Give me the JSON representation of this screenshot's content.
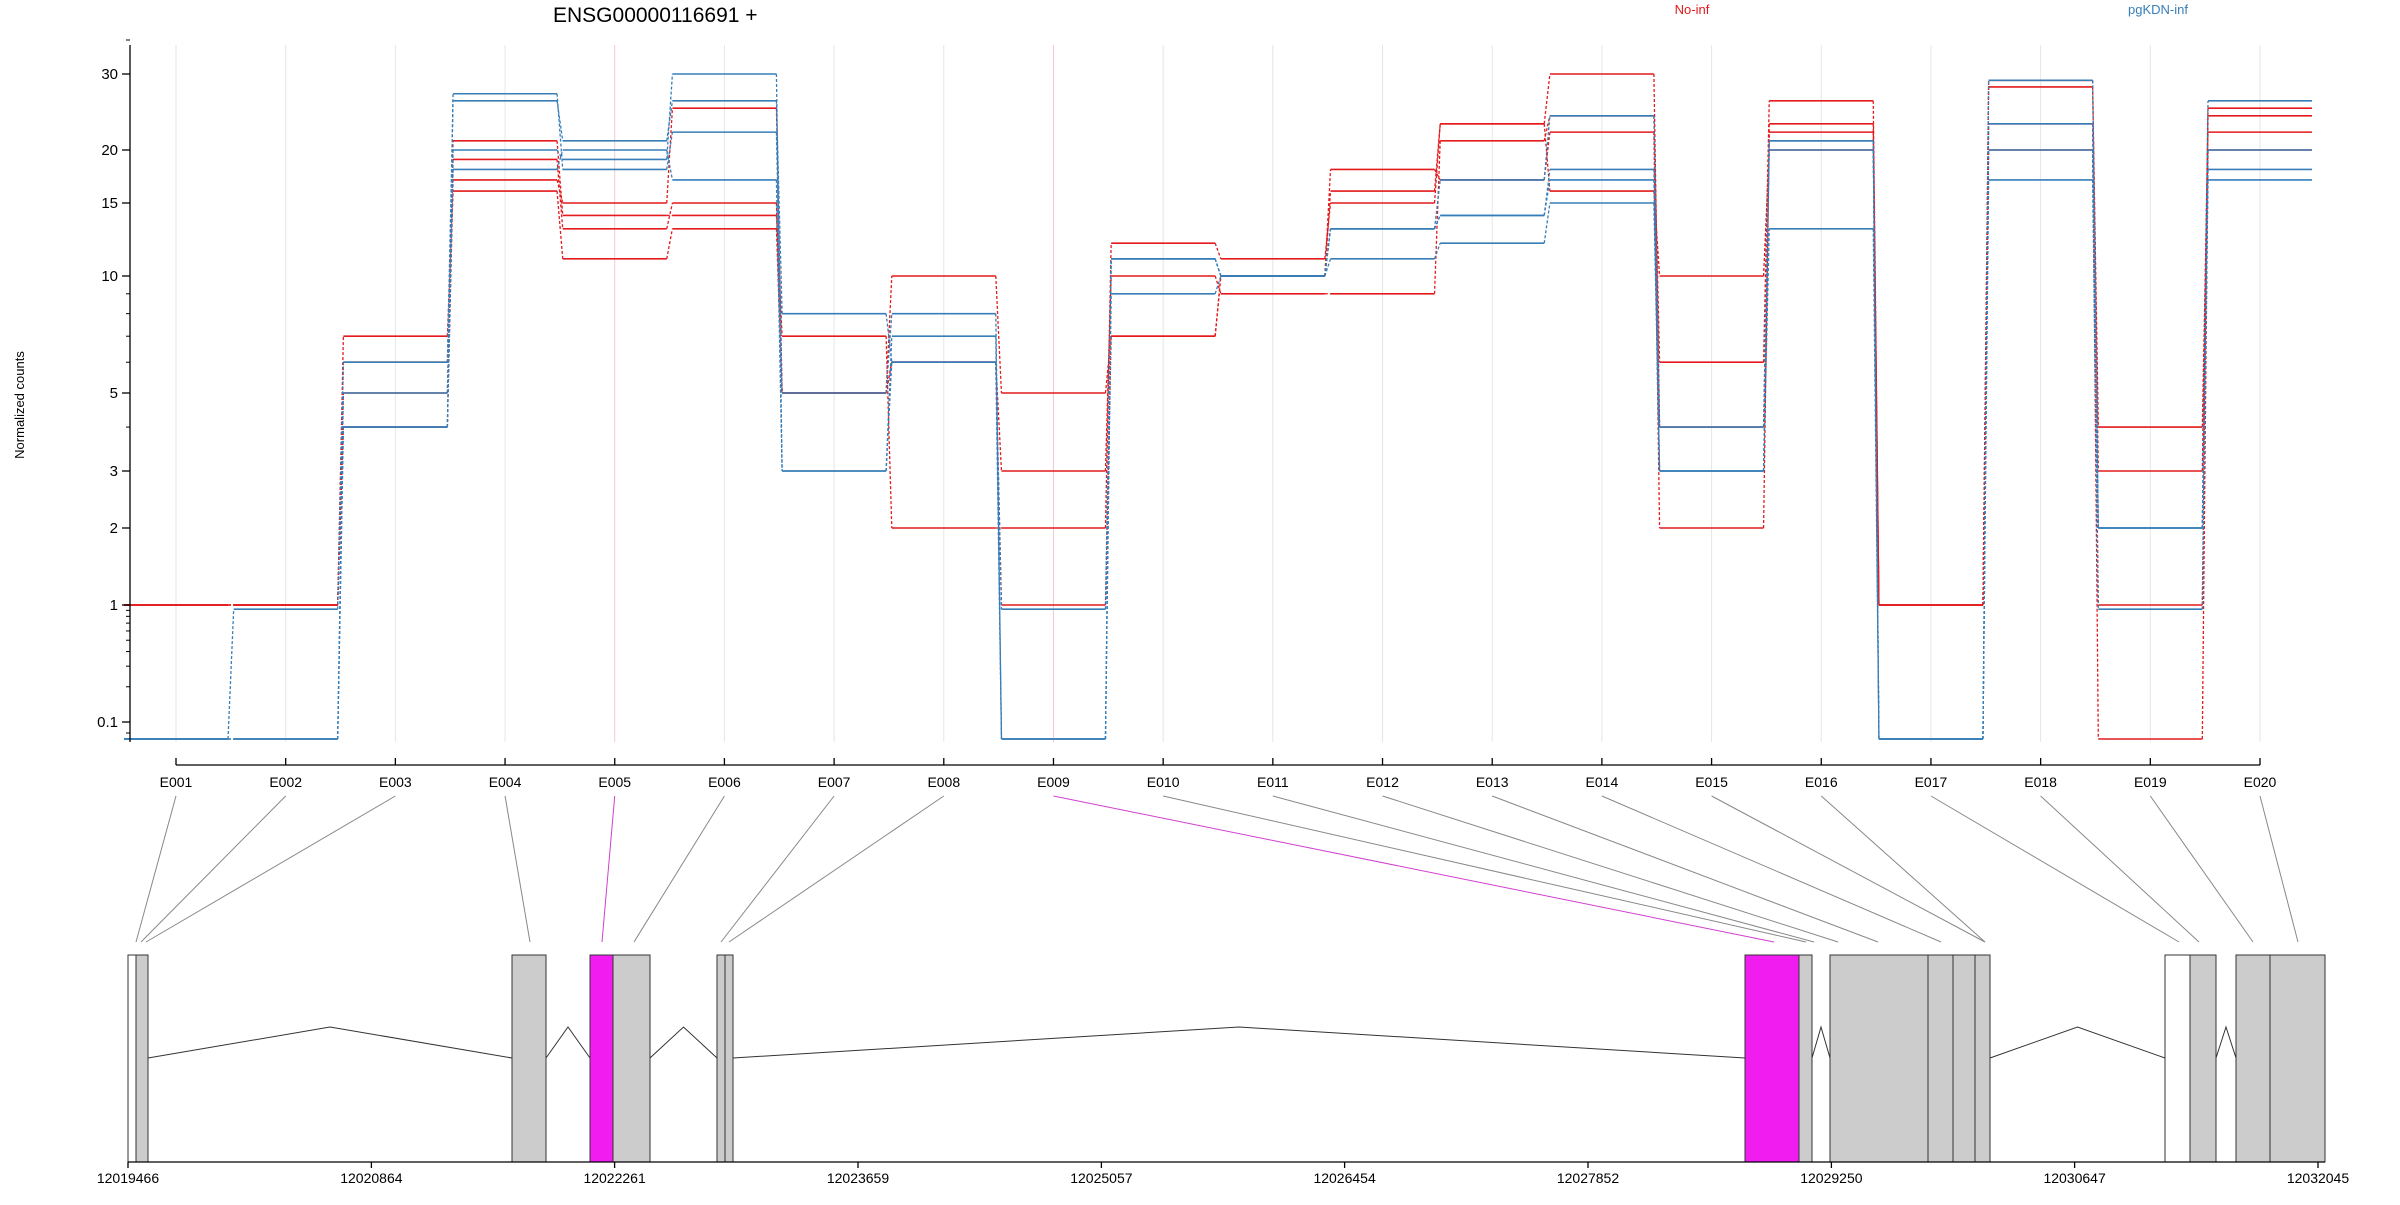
{
  "chart_data": {
    "type": "line",
    "title": "ENSG00000116691 +",
    "ylabel": "Normalized counts",
    "y_scale": "log",
    "ylim": [
      0.085,
      40
    ],
    "y_ticks": [
      "0.1",
      "1",
      "2",
      "3",
      "5",
      "10",
      "15",
      "20",
      "30"
    ],
    "y_tick_values": [
      0.1,
      1,
      2,
      3,
      5,
      10,
      15,
      20,
      30
    ],
    "categories": [
      "E001",
      "E002",
      "E003",
      "E004",
      "E005",
      "E006",
      "E007",
      "E008",
      "E009",
      "E010",
      "E011",
      "E012",
      "E013",
      "E014",
      "E015",
      "E016",
      "E017",
      "E018",
      "E019",
      "E020"
    ],
    "legend": [
      {
        "name": "No-inf",
        "color": "#e41a1c"
      },
      {
        "name": "pgKDN-inf",
        "color": "#377eb8"
      }
    ],
    "grid": true,
    "series": [
      {
        "group": "No-inf",
        "color": "#e41a1c",
        "values": [
          1,
          1,
          4,
          17,
          15,
          25,
          5,
          10,
          5,
          7,
          10,
          18,
          17,
          22,
          2,
          22,
          1,
          29,
          3,
          25
        ]
      },
      {
        "group": "No-inf",
        "color": "#e41a1c",
        "values": [
          1,
          1,
          5,
          19,
          13,
          15,
          5,
          6,
          3,
          10,
          9,
          9,
          21,
          24,
          6,
          26,
          1,
          28,
          4,
          22
        ]
      },
      {
        "group": "No-inf",
        "color": "#e41a1c",
        "values": [
          1,
          1,
          6,
          21,
          14,
          14,
          7,
          2,
          2,
          12,
          11,
          15,
          23,
          16,
          10,
          20,
          1,
          20,
          1,
          24
        ]
      },
      {
        "group": "No-inf",
        "color": "#e41a1c",
        "values": [
          1,
          1,
          7,
          16,
          11,
          13,
          5,
          6,
          1,
          7,
          10,
          16,
          23,
          30,
          4,
          23,
          1,
          23,
          0.085,
          20
        ]
      },
      {
        "group": "pgKDN-inf",
        "color": "#377eb8",
        "values": [
          0.085,
          0.92,
          6,
          26,
          21,
          26,
          8,
          6,
          0.92,
          11,
          10,
          13,
          17,
          24,
          4,
          21,
          0.085,
          29,
          2,
          26
        ]
      },
      {
        "group": "pgKDN-inf",
        "color": "#377eb8",
        "values": [
          0.085,
          0.085,
          5,
          20,
          19,
          30,
          3,
          7,
          0.085,
          11,
          10,
          13,
          14,
          17,
          3,
          20,
          0.085,
          23,
          2,
          20
        ]
      },
      {
        "group": "pgKDN-inf",
        "color": "#377eb8",
        "values": [
          0.085,
          0.085,
          4,
          27,
          18,
          22,
          5,
          8,
          0.085,
          9,
          10,
          13,
          14,
          18,
          3,
          13,
          0.085,
          20,
          2,
          18
        ]
      },
      {
        "group": "pgKDN-inf",
        "color": "#377eb8",
        "values": [
          0.085,
          0.085,
          4,
          18,
          20,
          17,
          3,
          6,
          0.085,
          11,
          10,
          11,
          12,
          15,
          3,
          21,
          0.085,
          17,
          0.92,
          17
        ]
      }
    ],
    "highlighted_exons": [
      "E005",
      "E009"
    ],
    "gene_model": {
      "coordinate_ticks": [
        "12019466",
        "12020864",
        "12022261",
        "12023659",
        "12025057",
        "12026454",
        "12027852",
        "12029250",
        "12030647",
        "12032045"
      ],
      "coordinate_range": [
        12019466,
        12032045
      ],
      "exon_color": "#cccccc",
      "highlight_color": "#f01cf0",
      "utr_color": "#ffffff"
    }
  }
}
